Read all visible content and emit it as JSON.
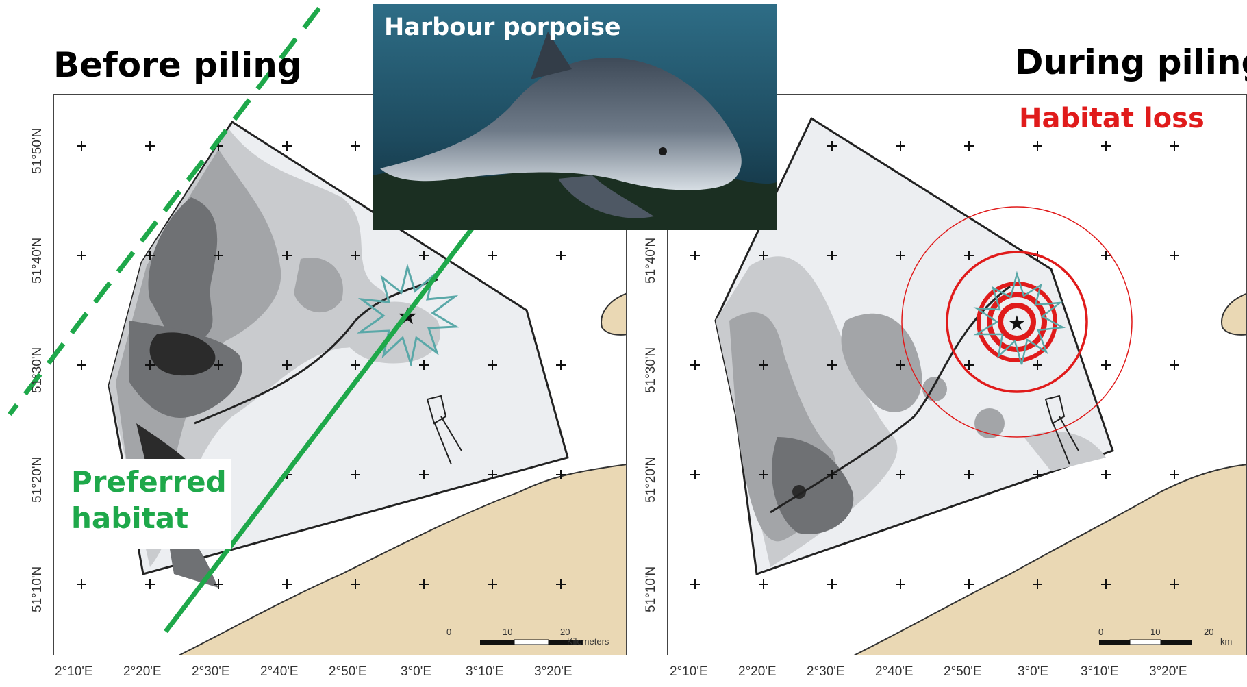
{
  "left_panel": {
    "heading": "Before piling",
    "habitat_label_line1": "Preferred",
    "habitat_label_line2": "habitat",
    "scale": {
      "ticks": [
        "0",
        "10",
        "20"
      ],
      "unit": "Kilometers"
    },
    "accent_color": "#1ea84a"
  },
  "right_panel": {
    "heading": "During piling",
    "impact_label": "Habitat loss",
    "scale": {
      "ticks": [
        "0",
        "10",
        "20"
      ],
      "unit": "km"
    },
    "accent_color": "#e01b1b"
  },
  "photo": {
    "title": "Harbour porpoise",
    "subject_icon": "porpoise-photo"
  },
  "axes": {
    "latitude_labels": [
      "51°50'N",
      "51°40'N",
      "51°30'N",
      "51°20'N",
      "51°10'N"
    ],
    "longitude_labels": [
      "2°10'E",
      "2°20'E",
      "2°30'E",
      "2°40'E",
      "2°50'E",
      "3°0'E",
      "3°10'E",
      "3°20'E"
    ]
  },
  "colors": {
    "land": "#ead8b4",
    "sea_light": "#eceef1",
    "density_1": "#c9cbce",
    "density_2": "#a3a5a8",
    "density_3": "#6f7174",
    "density_4": "#2b2b2b",
    "starburst": "#5aa8a8"
  }
}
